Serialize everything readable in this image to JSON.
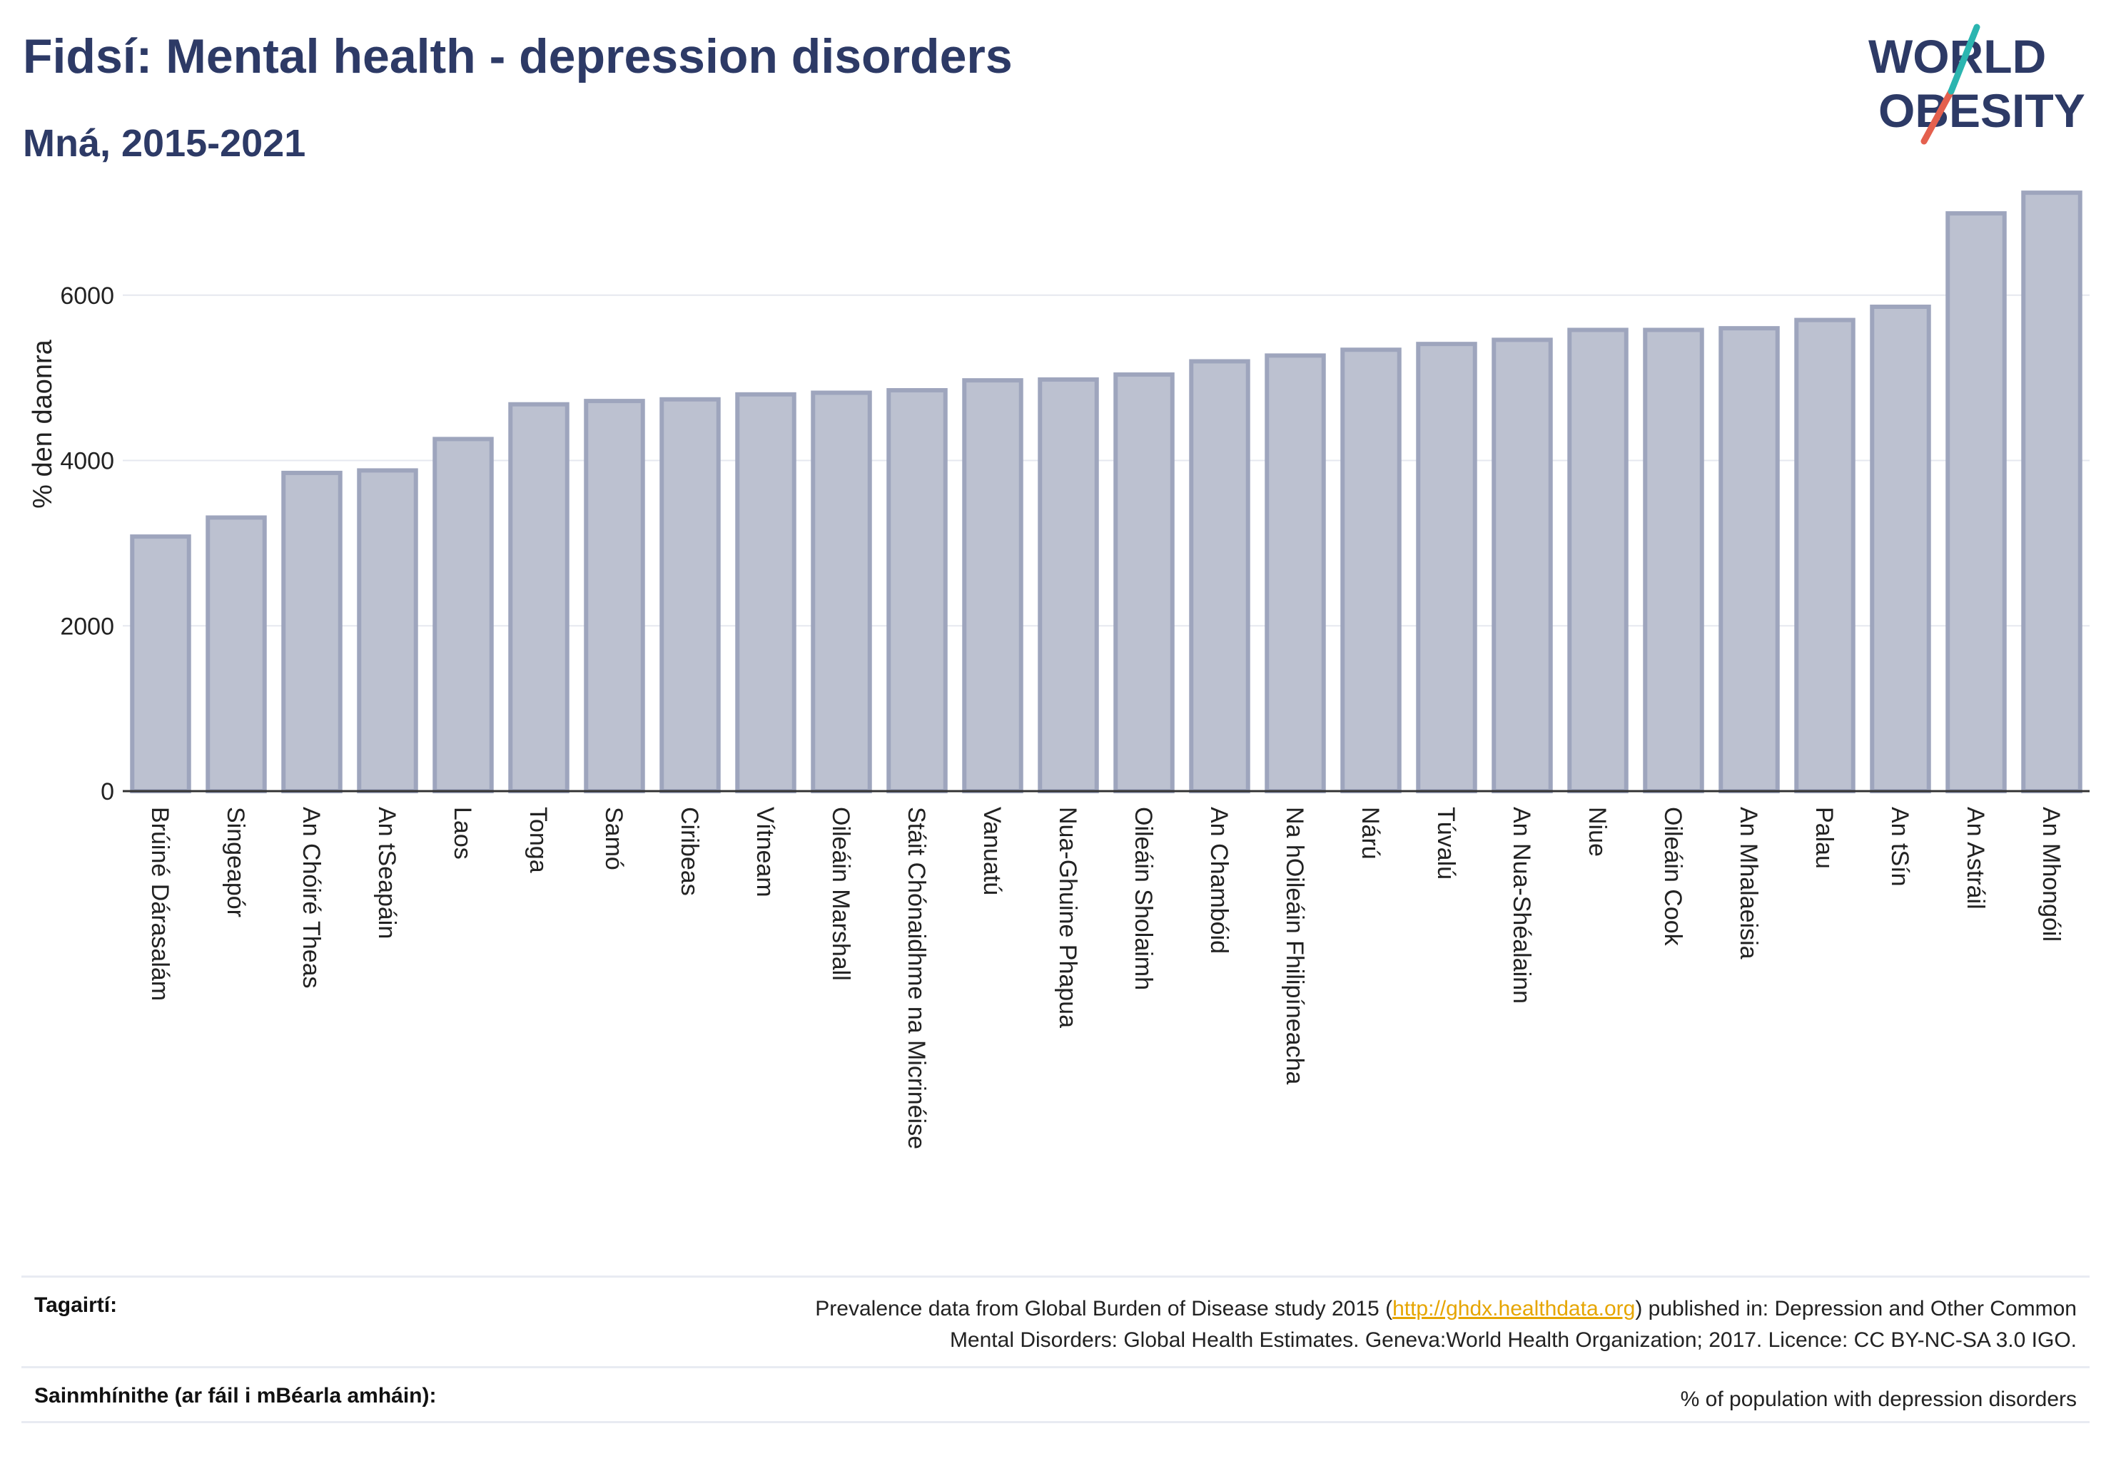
{
  "header": {
    "title": "Fidsí: Mental health - depression disorders",
    "subtitle": "Mná, 2015-2021"
  },
  "logo": {
    "line1": "WORLD",
    "line2": "OBESITY",
    "colors": {
      "text": "#2d3a66",
      "slash_teal": "#2bb5b0",
      "slash_red": "#e4604e"
    }
  },
  "chart_data": {
    "type": "bar",
    "title": "",
    "xlabel": "",
    "ylabel": "% den daonra",
    "ylim": [
      0,
      7500
    ],
    "yticks": [
      0,
      2000,
      4000,
      6000
    ],
    "grid": true,
    "bar_color": "#bcc1d0",
    "bar_edge_color": "#9ea5bd",
    "categories": [
      "Brúiné Dárasalám",
      "Singeapór",
      "An Chóiré Theas",
      "An tSeapáin",
      "Laos",
      "Tonga",
      "Samó",
      "Ciribeas",
      "Vítneam",
      "Oileáin Marshall",
      "Stáit Chónaidhme na Micrinéise",
      "Vanuatú",
      "Nua-Ghuine Phapua",
      "Oileáin Sholaimh",
      "An Chambóid",
      "Na hOileáin Fhilipíneacha",
      "Nárú",
      "Túvalú",
      "An Nua-Shéalainn",
      "Niue",
      "Oileáin Cook",
      "An Mhalaeisia",
      "Palau",
      "An tSín",
      "An Astráil",
      "An Mhongóil"
    ],
    "values": [
      3080,
      3310,
      3850,
      3880,
      4260,
      4680,
      4720,
      4740,
      4800,
      4820,
      4850,
      4970,
      4980,
      5040,
      5200,
      5270,
      5340,
      5410,
      5460,
      5580,
      5580,
      5600,
      5700,
      5860,
      6990,
      7240
    ]
  },
  "footer": {
    "references_label": "Tagairtí:",
    "references_text_pre": "Prevalence data from Global Burden of Disease study 2015 (",
    "references_link": "http://ghdx.healthdata.org",
    "references_text_post": ") published in: Depression and Other Common",
    "references_text_line2": "Mental Disorders: Global Health Estimates. Geneva:World Health Organization; 2017. Licence: CC BY-NC-SA 3.0 IGO.",
    "definitions_label": "Sainmhínithe (ar fáil i mBéarla amháin):",
    "definitions_text": "% of population with depression disorders"
  }
}
